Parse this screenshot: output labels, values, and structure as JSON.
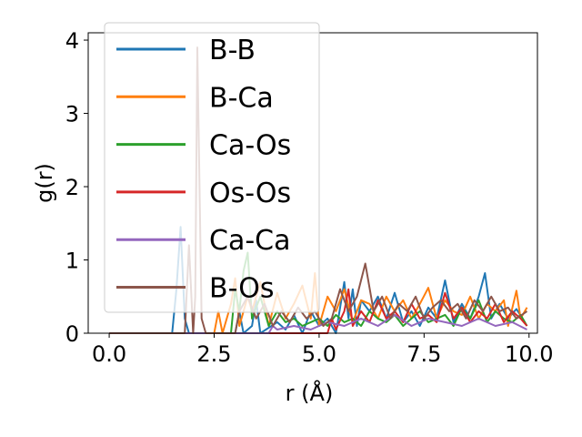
{
  "chart_data": {
    "type": "line",
    "xlabel": "r (Å)",
    "ylabel": "g(r)",
    "xlim": [
      -0.5,
      10.2
    ],
    "ylim": [
      0,
      4.1
    ],
    "x_ticks": [
      "0.0",
      "2.5",
      "5.0",
      "7.5",
      "10.0"
    ],
    "x_tick_values": [
      0,
      2.5,
      5,
      7.5,
      10
    ],
    "y_ticks": [
      "0",
      "1",
      "2",
      "3",
      "4"
    ],
    "y_tick_values": [
      0,
      1,
      2,
      3,
      4
    ],
    "grid": false,
    "legend_position": "upper-left",
    "series": [
      {
        "name": "B-B",
        "color": "#1f77b4",
        "points": [
          [
            0,
            0
          ],
          [
            1.5,
            0
          ],
          [
            1.6,
            0.6
          ],
          [
            1.7,
            1.45
          ],
          [
            1.8,
            0.2
          ],
          [
            1.9,
            0
          ],
          [
            3.0,
            0
          ],
          [
            3.1,
            0.3
          ],
          [
            3.2,
            0
          ],
          [
            3.4,
            0.1
          ],
          [
            3.5,
            0.45
          ],
          [
            3.6,
            0
          ],
          [
            4.0,
            0.15
          ],
          [
            4.2,
            0.05
          ],
          [
            4.4,
            0.25
          ],
          [
            4.6,
            0
          ],
          [
            4.8,
            0.3
          ],
          [
            5.0,
            0.1
          ],
          [
            5.2,
            0.2
          ],
          [
            5.4,
            0
          ],
          [
            5.6,
            0.7
          ],
          [
            5.7,
            0.2
          ],
          [
            5.8,
            0.6
          ],
          [
            5.9,
            0.1
          ],
          [
            6.0,
            0.45
          ],
          [
            6.2,
            0.3
          ],
          [
            6.4,
            0.5
          ],
          [
            6.6,
            0.2
          ],
          [
            6.8,
            0.55
          ],
          [
            7.0,
            0.15
          ],
          [
            7.2,
            0.3
          ],
          [
            7.4,
            0.1
          ],
          [
            7.6,
            0.35
          ],
          [
            7.8,
            0.2
          ],
          [
            8.0,
            0.72
          ],
          [
            8.2,
            0.15
          ],
          [
            8.4,
            0.4
          ],
          [
            8.6,
            0.2
          ],
          [
            8.8,
            0.5
          ],
          [
            8.95,
            0.82
          ],
          [
            9.1,
            0.2
          ],
          [
            9.3,
            0.4
          ],
          [
            9.5,
            0.2
          ],
          [
            9.7,
            0.33
          ],
          [
            9.9,
            0.15
          ]
        ]
      },
      {
        "name": "B-Ca",
        "color": "#ff7f0e",
        "points": [
          [
            0,
            0
          ],
          [
            2.5,
            0
          ],
          [
            2.6,
            0.3
          ],
          [
            2.7,
            0
          ],
          [
            2.9,
            0.4
          ],
          [
            3.0,
            0.75
          ],
          [
            3.1,
            0.1
          ],
          [
            3.3,
            0.5
          ],
          [
            3.4,
            0.3
          ],
          [
            3.6,
            0.7
          ],
          [
            3.8,
            0.1
          ],
          [
            4.0,
            0.55
          ],
          [
            4.2,
            0.2
          ],
          [
            4.4,
            0.4
          ],
          [
            4.6,
            0.65
          ],
          [
            4.8,
            0.2
          ],
          [
            4.9,
            0.82
          ],
          [
            5.0,
            0.1
          ],
          [
            5.2,
            0.5
          ],
          [
            5.4,
            0.3
          ],
          [
            5.6,
            0.6
          ],
          [
            5.8,
            0.15
          ],
          [
            6.0,
            0.45
          ],
          [
            6.2,
            0.4
          ],
          [
            6.4,
            0.2
          ],
          [
            6.6,
            0.5
          ],
          [
            6.8,
            0.3
          ],
          [
            7.0,
            0.45
          ],
          [
            7.2,
            0.2
          ],
          [
            7.4,
            0.4
          ],
          [
            7.6,
            0.62
          ],
          [
            7.8,
            0.2
          ],
          [
            8.0,
            0.45
          ],
          [
            8.2,
            0.3
          ],
          [
            8.4,
            0.25
          ],
          [
            8.6,
            0.5
          ],
          [
            8.8,
            0.2
          ],
          [
            9.0,
            0.4
          ],
          [
            9.2,
            0.3
          ],
          [
            9.4,
            0.45
          ],
          [
            9.5,
            0.1
          ],
          [
            9.7,
            0.58
          ],
          [
            9.8,
            0.2
          ],
          [
            9.95,
            0.35
          ]
        ]
      },
      {
        "name": "Ca-Os",
        "color": "#2ca02c",
        "points": [
          [
            0,
            0
          ],
          [
            2.9,
            0
          ],
          [
            3.0,
            0.6
          ],
          [
            3.1,
            0.3
          ],
          [
            3.2,
            0.85
          ],
          [
            3.3,
            1.1
          ],
          [
            3.4,
            0.2
          ],
          [
            3.6,
            0.5
          ],
          [
            3.8,
            0.1
          ],
          [
            4.0,
            0.3
          ],
          [
            4.2,
            0.15
          ],
          [
            4.4,
            0.2
          ],
          [
            4.6,
            0.1
          ],
          [
            4.8,
            0.15
          ],
          [
            5.0,
            0.2
          ],
          [
            5.2,
            0.1
          ],
          [
            5.4,
            0.25
          ],
          [
            5.6,
            0.15
          ],
          [
            5.8,
            0.2
          ],
          [
            6.0,
            0.1
          ],
          [
            6.2,
            0.3
          ],
          [
            6.4,
            0.2
          ],
          [
            6.6,
            0.15
          ],
          [
            6.8,
            0.25
          ],
          [
            7.0,
            0.1
          ],
          [
            7.2,
            0.2
          ],
          [
            7.4,
            0.3
          ],
          [
            7.6,
            0.15
          ],
          [
            7.8,
            0.2
          ],
          [
            8.0,
            0.25
          ],
          [
            8.2,
            0.1
          ],
          [
            8.4,
            0.35
          ],
          [
            8.6,
            0.2
          ],
          [
            8.8,
            0.45
          ],
          [
            9.0,
            0.15
          ],
          [
            9.2,
            0.3
          ],
          [
            9.4,
            0.2
          ],
          [
            9.6,
            0.15
          ],
          [
            9.8,
            0.25
          ],
          [
            9.95,
            0.1
          ]
        ]
      },
      {
        "name": "Os-Os",
        "color": "#d62728",
        "points": [
          [
            0,
            0
          ],
          [
            5.2,
            0
          ],
          [
            5.3,
            0.2
          ],
          [
            5.4,
            0.05
          ],
          [
            5.6,
            0.3
          ],
          [
            5.7,
            0.6
          ],
          [
            5.8,
            0.1
          ],
          [
            6.0,
            0.3
          ],
          [
            6.2,
            0.15
          ],
          [
            6.4,
            0.45
          ],
          [
            6.6,
            0.2
          ],
          [
            6.8,
            0.3
          ],
          [
            7.0,
            0.15
          ],
          [
            7.2,
            0.4
          ],
          [
            7.4,
            0.2
          ],
          [
            7.6,
            0.25
          ],
          [
            7.8,
            0.15
          ],
          [
            8.0,
            0.55
          ],
          [
            8.2,
            0.2
          ],
          [
            8.4,
            0.35
          ],
          [
            8.6,
            0.15
          ],
          [
            8.8,
            0.3
          ],
          [
            9.0,
            0.2
          ],
          [
            9.2,
            0.4
          ],
          [
            9.4,
            0.15
          ],
          [
            9.6,
            0.3
          ],
          [
            9.8,
            0.2
          ],
          [
            9.95,
            0.1
          ]
        ]
      },
      {
        "name": "Ca-Ca",
        "color": "#9467bd",
        "points": [
          [
            0,
            0
          ],
          [
            3.8,
            0
          ],
          [
            3.9,
            0.1
          ],
          [
            4.0,
            0.05
          ],
          [
            4.4,
            0.1
          ],
          [
            4.8,
            0.05
          ],
          [
            5.2,
            0.15
          ],
          [
            5.6,
            0.1
          ],
          [
            6.0,
            0.2
          ],
          [
            6.4,
            0.1
          ],
          [
            6.8,
            0.25
          ],
          [
            7.2,
            0.1
          ],
          [
            7.6,
            0.2
          ],
          [
            8.0,
            0.15
          ],
          [
            8.4,
            0.1
          ],
          [
            8.8,
            0.2
          ],
          [
            9.2,
            0.1
          ],
          [
            9.6,
            0.15
          ],
          [
            9.95,
            0.05
          ]
        ]
      },
      {
        "name": "B-Os",
        "color": "#8c564b",
        "points": [
          [
            0,
            0
          ],
          [
            1.8,
            0
          ],
          [
            1.9,
            1.2
          ],
          [
            2.0,
            0
          ],
          [
            2.05,
            0.5
          ],
          [
            2.1,
            3.9
          ],
          [
            2.2,
            0.2
          ],
          [
            2.3,
            0
          ],
          [
            3.0,
            0
          ],
          [
            3.1,
            0.3
          ],
          [
            3.3,
            0.5
          ],
          [
            3.5,
            0.2
          ],
          [
            3.7,
            0.4
          ],
          [
            3.9,
            0.1
          ],
          [
            4.1,
            0.3
          ],
          [
            4.3,
            0.15
          ],
          [
            4.5,
            0.35
          ],
          [
            4.7,
            0.2
          ],
          [
            4.9,
            0.3
          ],
          [
            5.1,
            0.1
          ],
          [
            5.3,
            0.2
          ],
          [
            5.5,
            0.6
          ],
          [
            5.7,
            0.3
          ],
          [
            5.9,
            0.5
          ],
          [
            6.1,
            0.95
          ],
          [
            6.3,
            0.3
          ],
          [
            6.5,
            0.5
          ],
          [
            6.7,
            0.2
          ],
          [
            6.9,
            0.4
          ],
          [
            7.1,
            0.3
          ],
          [
            7.3,
            0.5
          ],
          [
            7.5,
            0.2
          ],
          [
            7.7,
            0.35
          ],
          [
            7.9,
            0.45
          ],
          [
            8.1,
            0.3
          ],
          [
            8.3,
            0.4
          ],
          [
            8.5,
            0.2
          ],
          [
            8.7,
            0.45
          ],
          [
            8.9,
            0.3
          ],
          [
            9.1,
            0.5
          ],
          [
            9.3,
            0.3
          ],
          [
            9.5,
            0.35
          ],
          [
            9.7,
            0.2
          ],
          [
            9.95,
            0.3
          ]
        ]
      }
    ]
  }
}
